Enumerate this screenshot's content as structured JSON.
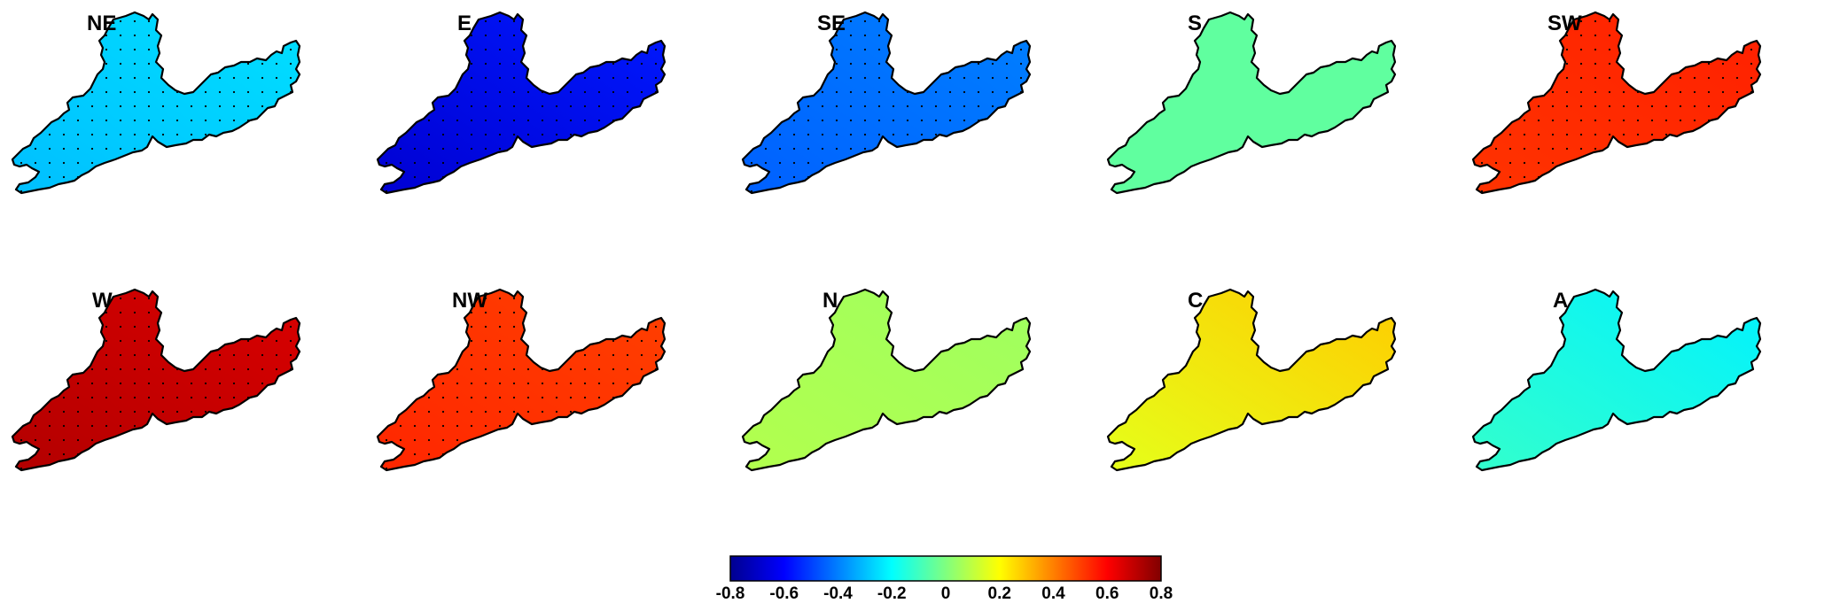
{
  "colorbar": {
    "min": -0.8,
    "max": 0.8,
    "colormap": "jet",
    "tick_labels": [
      "-0.8",
      "-0.6",
      "-0.4",
      "-0.2",
      "0",
      "0.2",
      "0.4",
      "0.6",
      "0.8"
    ],
    "tick_values": [
      -0.8,
      -0.6,
      -0.4,
      -0.2,
      0,
      0.2,
      0.4,
      0.6,
      0.8
    ]
  },
  "panels": [
    {
      "label": "NE",
      "value_left": -0.3,
      "value_right": -0.25,
      "stippled": true
    },
    {
      "label": "E",
      "value_left": -0.68,
      "value_right": -0.56,
      "stippled": true
    },
    {
      "label": "SE",
      "value_left": -0.45,
      "value_right": -0.4,
      "stippled": true
    },
    {
      "label": "S",
      "value_left": -0.05,
      "value_right": -0.05,
      "stippled": false
    },
    {
      "label": "SW",
      "value_left": 0.52,
      "value_right": 0.55,
      "stippled": true
    },
    {
      "label": "W",
      "value_left": 0.72,
      "value_right": 0.66,
      "stippled": true
    },
    {
      "label": "NW",
      "value_left": 0.54,
      "value_right": 0.5,
      "stippled": true
    },
    {
      "label": "N",
      "value_left": 0.08,
      "value_right": 0.05,
      "stippled": false
    },
    {
      "label": "C",
      "value_left": 0.16,
      "value_right": 0.28,
      "stippled": false
    },
    {
      "label": "A",
      "value_left": -0.12,
      "value_right": -0.22,
      "stippled": false
    }
  ]
}
